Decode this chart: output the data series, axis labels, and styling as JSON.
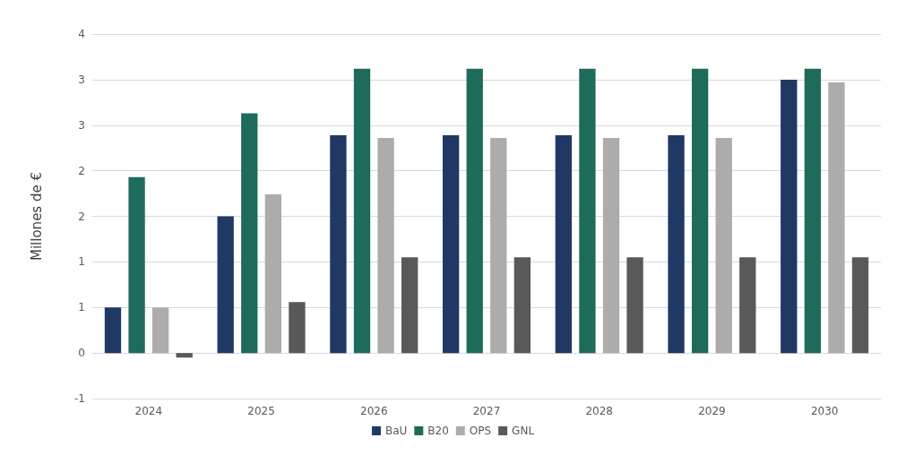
{
  "chart_data": {
    "type": "bar",
    "ylabel": "Millones de €",
    "categories": [
      "2024",
      "2025",
      "2026",
      "2027",
      "2028",
      "2029",
      "2030"
    ],
    "series": [
      {
        "name": "BaU",
        "color": "#203864",
        "values": [
          0.5,
          1.5,
          2.39,
          2.39,
          2.39,
          2.39,
          3.0
        ]
      },
      {
        "name": "B20",
        "color": "#1f6b5b",
        "values": [
          1.93,
          2.63,
          3.12,
          3.12,
          3.12,
          3.12,
          3.12
        ]
      },
      {
        "name": "OPS",
        "color": "#aeabab",
        "values": [
          0.5,
          1.74,
          2.36,
          2.36,
          2.36,
          2.36,
          2.97
        ]
      },
      {
        "name": "GNL",
        "color": "#595959",
        "values": [
          -0.05,
          0.56,
          1.05,
          1.05,
          1.05,
          1.05,
          1.05
        ]
      }
    ],
    "ylim": [
      -0.5,
      3.5
    ],
    "yticks": [
      {
        "value": -0.5,
        "label": "-1"
      },
      0,
      {
        "value": 0.5,
        "label": "1"
      },
      1,
      {
        "value": 1.5,
        "label": "2"
      },
      2,
      {
        "value": 2.5,
        "label": "3"
      },
      3,
      {
        "value": 3.5,
        "label": "4"
      }
    ],
    "grid": "y",
    "legend": "bottom"
  }
}
